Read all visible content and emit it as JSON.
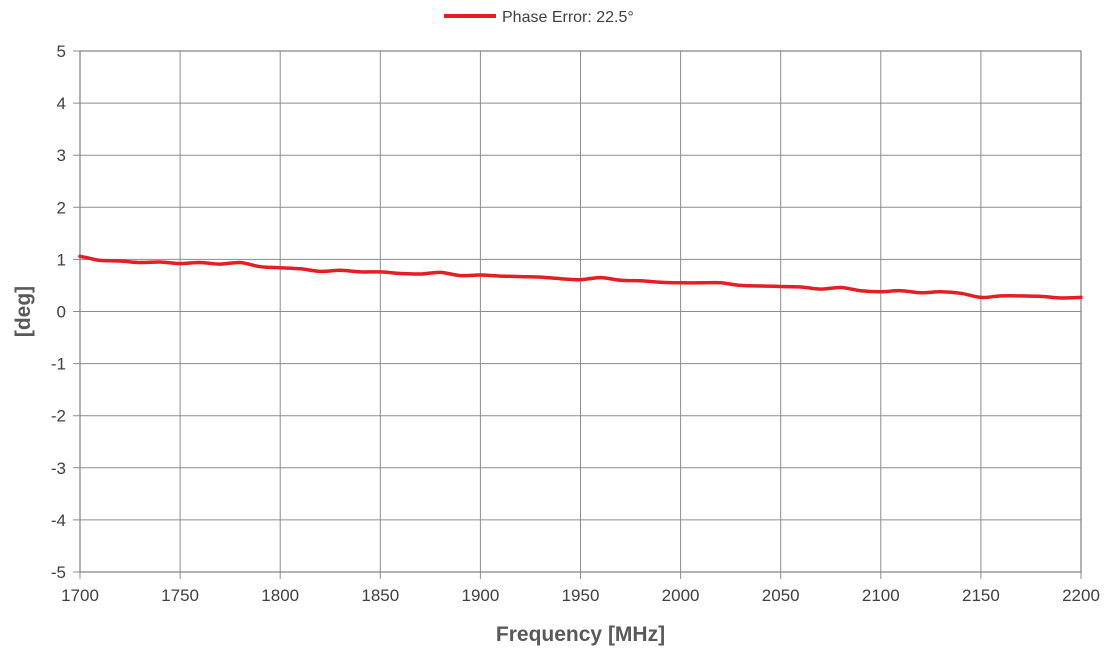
{
  "chart_data": {
    "type": "line",
    "xlabel": "Frequency [MHz]",
    "ylabel": "[deg]",
    "xlim": [
      1700,
      2200
    ],
    "ylim": [
      -5,
      5
    ],
    "xticks": [
      "1700",
      "1750",
      "1800",
      "1850",
      "1900",
      "1950",
      "2000",
      "2050",
      "2100",
      "2150",
      "2200"
    ],
    "yticks": [
      "5",
      "4",
      "3",
      "2",
      "1",
      "0",
      "-1",
      "-2",
      "-3",
      "-4",
      "-5"
    ],
    "grid": true,
    "legend_position": "top-center",
    "series": [
      {
        "name": "Phase Error: 22.5°",
        "color": "#e31e24",
        "x": [
          1700,
          1705,
          1710,
          1720,
          1730,
          1740,
          1750,
          1760,
          1770,
          1780,
          1790,
          1800,
          1810,
          1820,
          1830,
          1840,
          1850,
          1860,
          1870,
          1880,
          1890,
          1900,
          1910,
          1920,
          1930,
          1940,
          1950,
          1960,
          1970,
          1980,
          1990,
          2000,
          2010,
          2020,
          2030,
          2040,
          2050,
          2060,
          2070,
          2080,
          2090,
          2100,
          2110,
          2120,
          2130,
          2140,
          2150,
          2160,
          2170,
          2180,
          2190,
          2200
        ],
        "y": [
          1.06,
          1.02,
          0.98,
          0.97,
          0.94,
          0.95,
          0.92,
          0.94,
          0.91,
          0.94,
          0.86,
          0.84,
          0.82,
          0.77,
          0.79,
          0.76,
          0.76,
          0.73,
          0.72,
          0.75,
          0.69,
          0.7,
          0.68,
          0.67,
          0.66,
          0.63,
          0.61,
          0.65,
          0.6,
          0.59,
          0.56,
          0.55,
          0.55,
          0.55,
          0.5,
          0.49,
          0.48,
          0.47,
          0.43,
          0.46,
          0.4,
          0.38,
          0.4,
          0.36,
          0.38,
          0.35,
          0.27,
          0.3,
          0.3,
          0.29,
          0.26,
          0.27
        ]
      }
    ]
  }
}
